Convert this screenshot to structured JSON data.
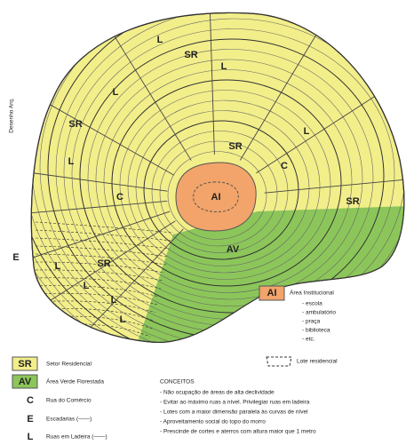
{
  "side_note": "Desenho Arq.",
  "map_labels": [
    "L",
    "SR",
    "L",
    "L",
    "SR",
    "L",
    "SR",
    "C",
    "L",
    "C",
    "AI",
    "SR",
    "E",
    "L",
    "SR",
    "AV",
    "L",
    "L",
    "L"
  ],
  "institutional_legend": {
    "code": "AI",
    "label": "Área Institucional",
    "items": [
      "- escola",
      "- ambulatório",
      "- praça",
      "- biblioteca",
      "- etc."
    ],
    "lot": "Lote residencial"
  },
  "legend": [
    {
      "code": "SR",
      "label": "Setor Residencial"
    },
    {
      "code": "AV",
      "label": "Área Verde Florestada"
    },
    {
      "code": "C",
      "label": "Rua do Comércio"
    },
    {
      "code": "E",
      "label": "Escadarias (——)"
    },
    {
      "code": "L",
      "label": "Ruas em Ladeira (——)"
    }
  ],
  "concepts": {
    "title": "CONCEITOS",
    "items": [
      "- Não ocupação de áreas de alta declividade",
      "- Evitar ao máximo ruas a nível. Privilegiar ruas em ladeira",
      "- Lotes com a maior dimensão paralela às curvas de nível",
      "- Aproveitamento social do topo do morro",
      "- Prescinde de cortes e aterros com altura maior que 1 metro"
    ]
  }
}
